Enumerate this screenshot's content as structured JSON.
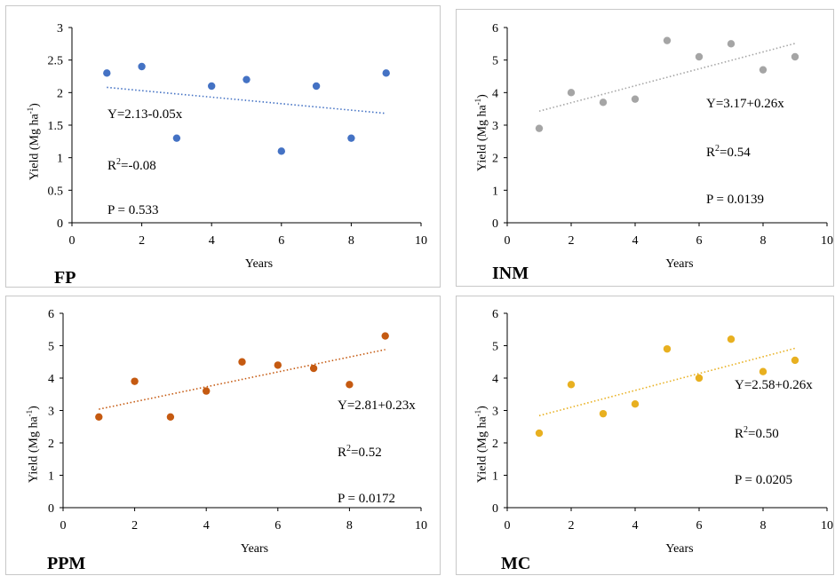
{
  "chart_data": [
    {
      "id": "fp",
      "type": "scatter",
      "panel_label": "FP",
      "xlabel": "Years",
      "ylabel_main": "Yield (Mg ha",
      "ylabel_sup": "-1",
      "ylabel_end": ")",
      "xlim": [
        0,
        10
      ],
      "ylim": [
        0,
        3
      ],
      "xticks": [
        0,
        2,
        4,
        6,
        8,
        10
      ],
      "yticks": [
        0,
        0.5,
        1,
        1.5,
        2,
        2.5,
        3
      ],
      "color": "#4472C4",
      "x": [
        1,
        2,
        3,
        4,
        5,
        6,
        7,
        8,
        9
      ],
      "y": [
        2.3,
        2.4,
        1.3,
        2.1,
        2.2,
        1.1,
        2.1,
        1.3,
        2.3
      ],
      "trendline": {
        "intercept": 2.13,
        "slope": -0.05,
        "x_range": [
          1,
          9
        ]
      },
      "equation": "Y=2.13-0.05x",
      "r2_prefix": "R",
      "r2_sup": "2",
      "r2_value": "=-0.08",
      "p_value": "P = 0.533",
      "grid": false
    },
    {
      "id": "inm",
      "type": "scatter",
      "panel_label": "INM",
      "xlabel": "Years",
      "ylabel_main": "Yield (Mg ha",
      "ylabel_sup": "-1",
      "ylabel_end": ")",
      "xlim": [
        0,
        10
      ],
      "ylim": [
        0,
        6
      ],
      "xticks": [
        0,
        2,
        4,
        6,
        8,
        10
      ],
      "yticks": [
        0,
        1,
        2,
        3,
        4,
        5,
        6
      ],
      "color": "#A5A5A5",
      "x": [
        1,
        2,
        3,
        4,
        5,
        6,
        7,
        8,
        9
      ],
      "y": [
        2.9,
        4.0,
        3.7,
        3.8,
        5.6,
        5.1,
        5.5,
        4.7,
        5.1
      ],
      "trendline": {
        "intercept": 3.17,
        "slope": 0.26,
        "x_range": [
          1,
          9
        ]
      },
      "equation": "Y=3.17+0.26x",
      "r2_prefix": "R",
      "r2_sup": "2",
      "r2_value": "=0.54",
      "p_value": "P = 0.0139",
      "grid": false
    },
    {
      "id": "ppm",
      "type": "scatter",
      "panel_label": "PPM",
      "xlabel": "Years",
      "ylabel_main": "Yield (Mg ha",
      "ylabel_sup": "-1",
      "ylabel_end": ")",
      "xlim": [
        0,
        10
      ],
      "ylim": [
        0,
        6
      ],
      "xticks": [
        0,
        2,
        4,
        6,
        8,
        10
      ],
      "yticks": [
        0,
        1,
        2,
        3,
        4,
        5,
        6
      ],
      "color": "#C55A11",
      "x": [
        1,
        2,
        3,
        4,
        5,
        6,
        7,
        8,
        9
      ],
      "y": [
        2.8,
        3.9,
        2.8,
        3.6,
        4.5,
        4.4,
        4.3,
        3.8,
        5.3
      ],
      "trendline": {
        "intercept": 2.81,
        "slope": 0.23,
        "x_range": [
          1,
          9
        ]
      },
      "equation": "Y=2.81+0.23x",
      "r2_prefix": "R",
      "r2_sup": "2",
      "r2_value": "=0.52",
      "p_value": "P = 0.0172",
      "grid": false
    },
    {
      "id": "mc",
      "type": "scatter",
      "panel_label": "MC",
      "xlabel": "Years",
      "ylabel_main": "Yield (Mg ha",
      "ylabel_sup": "-1",
      "ylabel_end": ")",
      "xlim": [
        0,
        10
      ],
      "ylim": [
        0,
        6
      ],
      "xticks": [
        0,
        2,
        4,
        6,
        8,
        10
      ],
      "yticks": [
        0,
        1,
        2,
        3,
        4,
        5,
        6
      ],
      "color": "#E8B020",
      "x": [
        1,
        2,
        3,
        4,
        5,
        6,
        7,
        8,
        9
      ],
      "y": [
        2.3,
        3.8,
        2.9,
        3.2,
        4.9,
        4.0,
        5.2,
        4.2,
        4.55
      ],
      "trendline": {
        "intercept": 2.58,
        "slope": 0.26,
        "x_range": [
          1,
          9
        ]
      },
      "equation": "Y=2.58+0.26x",
      "r2_prefix": "R",
      "r2_sup": "2",
      "r2_value": "=0.50",
      "p_value": "P = 0.0205",
      "grid": false
    }
  ]
}
